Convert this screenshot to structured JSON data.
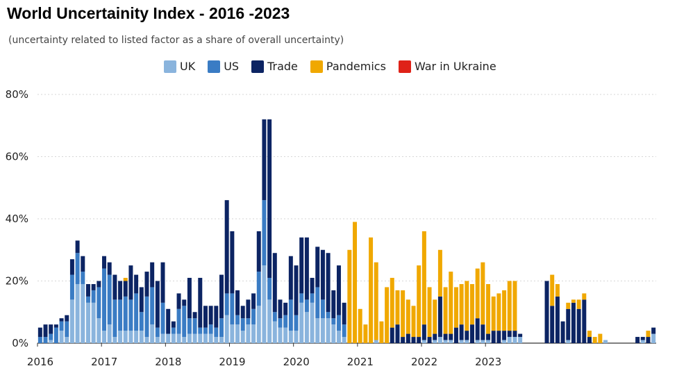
{
  "header": {
    "title": "World Uncertainity Index - 2016 -2023",
    "subtitle": "(uncertainty related to listed factor as a share of overall uncertainty)"
  },
  "chart_data": {
    "type": "bar",
    "stacked": true,
    "title": "World Uncertainity Index - 2016 -2023",
    "subtitle": "(uncertainty related to listed factor as a share of overall uncertainty)",
    "ylim": [
      0,
      80
    ],
    "yticks": [
      0,
      20,
      40,
      60,
      80
    ],
    "ytick_labels": [
      "0%",
      "20%",
      "40%",
      "60%",
      "80%"
    ],
    "xtick_labels": [
      "2016",
      "2017",
      "2018",
      "2019",
      "2020",
      "2021",
      "2022",
      "2023"
    ],
    "x_unit": "month",
    "start": "2016-01",
    "grid": true,
    "legend_position": "top-center",
    "series": [
      {
        "name": "UK",
        "color": "#8ab4dd",
        "values": [
          0,
          0,
          1,
          0,
          4,
          2,
          14,
          19,
          19,
          13,
          13,
          8,
          4,
          6,
          2,
          4,
          4,
          4,
          4,
          4,
          2,
          6,
          2,
          3,
          3,
          3,
          3,
          2,
          3,
          3,
          3,
          3,
          3,
          2,
          2,
          9,
          6,
          6,
          4,
          6,
          6,
          12,
          25,
          14,
          7,
          5,
          5,
          4,
          4,
          13,
          10,
          13,
          8,
          8,
          8,
          6,
          4,
          2,
          0,
          0,
          0,
          0,
          0,
          1,
          0,
          0,
          0,
          0,
          0,
          0,
          0,
          0,
          1,
          0,
          1,
          2,
          1,
          1,
          0,
          1,
          1,
          0,
          1,
          1,
          1,
          0,
          0,
          1,
          2,
          2,
          2,
          0,
          0,
          0,
          0,
          0,
          0,
          0,
          0,
          1,
          0,
          0,
          0,
          0,
          0,
          0,
          1,
          0,
          0,
          0,
          0,
          0,
          0,
          1,
          0,
          3
        ]
      },
      {
        "name": "US",
        "color": "#3a7cc4",
        "values": [
          2,
          2,
          2,
          5,
          3,
          5,
          8,
          10,
          4,
          2,
          4,
          10,
          20,
          16,
          12,
          10,
          11,
          10,
          12,
          6,
          13,
          12,
          3,
          10,
          0,
          2,
          8,
          10,
          5,
          5,
          2,
          2,
          3,
          3,
          6,
          7,
          10,
          3,
          4,
          2,
          5,
          11,
          21,
          7,
          3,
          3,
          4,
          10,
          5,
          3,
          4,
          3,
          10,
          6,
          2,
          2,
          5,
          4,
          0,
          0,
          0,
          0,
          0,
          0,
          0,
          0,
          0,
          0,
          0,
          0,
          0,
          0,
          0,
          0,
          0,
          0,
          0,
          0,
          0,
          0,
          0,
          0,
          0,
          0,
          0,
          0,
          0,
          0,
          0,
          0,
          0,
          0,
          0,
          0,
          0,
          0,
          0,
          0,
          0,
          0,
          0,
          0,
          0,
          0,
          0,
          0,
          0,
          0,
          0,
          0,
          0,
          0,
          0,
          0,
          0,
          0
        ]
      },
      {
        "name": "Trade",
        "color": "#0c2463",
        "values": [
          3,
          4,
          3,
          1,
          1,
          2,
          5,
          4,
          5,
          4,
          2,
          2,
          4,
          4,
          8,
          6,
          5,
          11,
          6,
          8,
          8,
          8,
          15,
          13,
          8,
          2,
          5,
          2,
          13,
          2,
          16,
          7,
          6,
          7,
          14,
          30,
          20,
          8,
          4,
          6,
          5,
          13,
          26,
          51,
          19,
          6,
          4,
          14,
          16,
          18,
          20,
          5,
          13,
          16,
          19,
          9,
          16,
          7,
          0,
          0,
          0,
          0,
          0,
          0,
          0,
          0,
          5,
          6,
          2,
          3,
          2,
          2,
          5,
          2,
          2,
          13,
          2,
          2,
          5,
          5,
          3,
          6,
          7,
          5,
          2,
          4,
          4,
          3,
          2,
          2,
          1,
          0,
          0,
          0,
          0,
          20,
          12,
          15,
          7,
          10,
          13,
          11,
          14,
          2,
          0,
          0,
          0,
          0,
          0,
          0,
          0,
          0,
          2,
          1,
          2,
          2
        ]
      },
      {
        "name": "Pandemics",
        "color": "#f0a800",
        "values": [
          0,
          0,
          0,
          0,
          0,
          0,
          0,
          0,
          0,
          0,
          0,
          0,
          0,
          0,
          0,
          0,
          1,
          0,
          0,
          0,
          0,
          0,
          0,
          0,
          0,
          0,
          0,
          0,
          0,
          0,
          0,
          0,
          0,
          0,
          0,
          0,
          0,
          0,
          0,
          0,
          0,
          0,
          0,
          0,
          0,
          0,
          0,
          0,
          0,
          0,
          0,
          0,
          0,
          0,
          0,
          0,
          0,
          0,
          30,
          39,
          11,
          6,
          34,
          25,
          7,
          18,
          16,
          11,
          15,
          11,
          10,
          23,
          30,
          16,
          11,
          15,
          15,
          20,
          13,
          13,
          16,
          13,
          16,
          20,
          16,
          11,
          12,
          13,
          16,
          16,
          0,
          0,
          0,
          0,
          0,
          0,
          10,
          4,
          0,
          2,
          1,
          3,
          2,
          2,
          2,
          3,
          0,
          0,
          0,
          0,
          0,
          0,
          0,
          0,
          2,
          0
        ]
      },
      {
        "name": "War in Ukraine",
        "color": "#df2218",
        "values": [
          0,
          0,
          0,
          0,
          0,
          0,
          0,
          0,
          0,
          0,
          0,
          0,
          0,
          0,
          0,
          0,
          0,
          0,
          0,
          0,
          0,
          0,
          0,
          0,
          0,
          0,
          0,
          0,
          0,
          0,
          0,
          0,
          0,
          0,
          0,
          0,
          0,
          0,
          0,
          0,
          0,
          0,
          0,
          0,
          0,
          0,
          0,
          0,
          0,
          0,
          0,
          0,
          0,
          0,
          0,
          0,
          0,
          0,
          0,
          0,
          0,
          0,
          0,
          0,
          0,
          0,
          0,
          0,
          0,
          0,
          0,
          0,
          0,
          0,
          0,
          0,
          0,
          0,
          0,
          0,
          0,
          0,
          0,
          0,
          0,
          0,
          0,
          0,
          0,
          0,
          0,
          0,
          0,
          0,
          0,
          0,
          0,
          0,
          0,
          0,
          0,
          0,
          0,
          0,
          0,
          0,
          0,
          0,
          0,
          0,
          0,
          0,
          0,
          0,
          0,
          0
        ]
      }
    ]
  }
}
